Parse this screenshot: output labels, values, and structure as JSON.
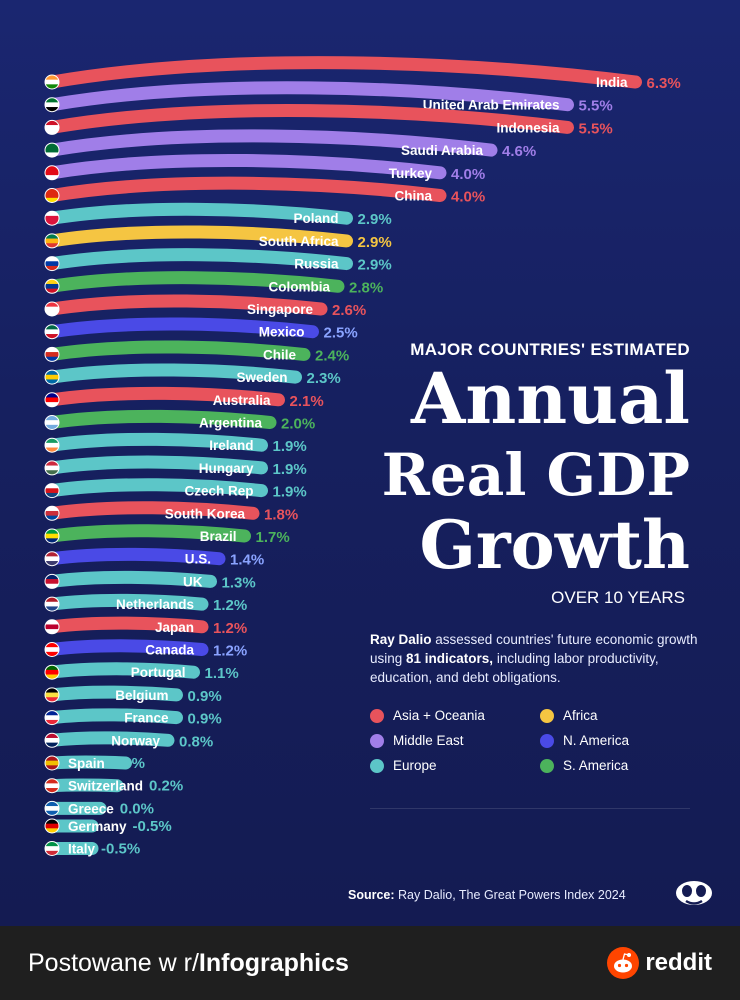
{
  "colors": {
    "Asia + Oceania": "#e8535c",
    "Middle East": "#a07ee8",
    "Africa": "#f5c542",
    "N. America": "#4a4ae6",
    "Europe": "#5cc6c8",
    "S. America": "#4cb35c"
  },
  "title": {
    "kicker": "MAJOR COUNTRIES' ESTIMATED",
    "line1": "Annual",
    "line2": "Real GDP",
    "line3": "Growth",
    "subtitle": "OVER 10 YEARS"
  },
  "description": {
    "lead": "Ray Dalio",
    "part1": " assessed countries' future economic growth using ",
    "bold": "81 indicators,",
    "part2": " including labor productivity, education, and debt obligations."
  },
  "legend": [
    {
      "label": "Asia + Oceania",
      "color": "#e8535c"
    },
    {
      "label": "Africa",
      "color": "#f5c542"
    },
    {
      "label": "Middle East",
      "color": "#a07ee8"
    },
    {
      "label": "N. America",
      "color": "#4a4ae6"
    },
    {
      "label": "Europe",
      "color": "#5cc6c8"
    },
    {
      "label": "S. America",
      "color": "#4cb35c"
    }
  ],
  "source": {
    "label": "Source:",
    "text": " Ray Dalio, The Great Powers Index 2024"
  },
  "footer": {
    "prefix": "Postowane w r/",
    "subreddit": "Infographics",
    "brand": "reddit"
  },
  "chart_data": {
    "type": "bar",
    "categories": [
      "India",
      "United Arab Emirates",
      "Indonesia",
      "Saudi Arabia",
      "Turkey",
      "China",
      "Poland",
      "South Africa",
      "Russia",
      "Colombia",
      "Singapore",
      "Mexico",
      "Chile",
      "Sweden",
      "Australia",
      "Argentina",
      "Ireland",
      "Hungary",
      "Czech Rep",
      "South Korea",
      "Brazil",
      "U.S.",
      "UK",
      "Netherlands",
      "Japan",
      "Canada",
      "Portugal",
      "Belgium",
      "France",
      "Norway",
      "Spain",
      "Switzerland",
      "Greece",
      "Germany",
      "Italy"
    ],
    "values": [
      6.3,
      5.5,
      5.5,
      4.6,
      4.0,
      4.0,
      2.9,
      2.9,
      2.9,
      2.8,
      2.6,
      2.5,
      2.4,
      2.3,
      2.1,
      2.0,
      1.9,
      1.9,
      1.9,
      1.8,
      1.7,
      1.4,
      1.3,
      1.2,
      1.2,
      1.2,
      1.1,
      0.9,
      0.9,
      0.8,
      0.3,
      0.2,
      0.0,
      -0.5,
      -0.5
    ],
    "value_labels": [
      "6.3%",
      "5.5%",
      "5.5%",
      "4.6%",
      "4.0%",
      "4.0%",
      "2.9%",
      "2.9%",
      "2.9%",
      "2.8%",
      "2.6%",
      "2.5%",
      "2.4%",
      "2.3%",
      "2.1%",
      "2.0%",
      "1.9%",
      "1.9%",
      "1.9%",
      "1.8%",
      "1.7%",
      "1.4%",
      "1.3%",
      "1.2%",
      "1.2%",
      "1.2%",
      "1.1%",
      "0.9%",
      "0.9%",
      "0.8%",
      "0.3%",
      "0.2%",
      "0.0%",
      "-0.5%",
      "-0.5%"
    ],
    "regions": [
      "Asia + Oceania",
      "Middle East",
      "Asia + Oceania",
      "Middle East",
      "Middle East",
      "Asia + Oceania",
      "Europe",
      "Africa",
      "Europe",
      "S. America",
      "Asia + Oceania",
      "N. America",
      "S. America",
      "Europe",
      "Asia + Oceania",
      "S. America",
      "Europe",
      "Europe",
      "Europe",
      "Asia + Oceania",
      "S. America",
      "N. America",
      "Europe",
      "Europe",
      "Asia + Oceania",
      "N. America",
      "Europe",
      "Europe",
      "Europe",
      "Europe",
      "Europe",
      "Europe",
      "Europe",
      "Europe",
      "Europe"
    ],
    "flag_colors": [
      [
        "#ff9933",
        "#ffffff",
        "#138808"
      ],
      [
        "#00732f",
        "#ffffff",
        "#000000"
      ],
      [
        "#ce1126",
        "#ffffff",
        "#ffffff"
      ],
      [
        "#006c35",
        "#006c35",
        "#ffffff"
      ],
      [
        "#e30a17",
        "#e30a17",
        "#ffffff"
      ],
      [
        "#de2910",
        "#de2910",
        "#ffde00"
      ],
      [
        "#ffffff",
        "#dc143c",
        "#dc143c"
      ],
      [
        "#007a4d",
        "#ffb612",
        "#de3831"
      ],
      [
        "#ffffff",
        "#0039a6",
        "#d52b1e"
      ],
      [
        "#fcd116",
        "#003893",
        "#ce1126"
      ],
      [
        "#ef3340",
        "#ffffff",
        "#ffffff"
      ],
      [
        "#006847",
        "#ffffff",
        "#ce1126"
      ],
      [
        "#ffffff",
        "#d52b1e",
        "#0039a6"
      ],
      [
        "#006aa7",
        "#fecc00",
        "#006aa7"
      ],
      [
        "#00008b",
        "#ff0000",
        "#ffffff"
      ],
      [
        "#74acdf",
        "#ffffff",
        "#74acdf"
      ],
      [
        "#169b62",
        "#ffffff",
        "#ff883e"
      ],
      [
        "#cd2a3e",
        "#ffffff",
        "#436f4d"
      ],
      [
        "#ffffff",
        "#d7141a",
        "#11457e"
      ],
      [
        "#ffffff",
        "#cd2e3a",
        "#0047a0"
      ],
      [
        "#009c3b",
        "#ffdf00",
        "#002776"
      ],
      [
        "#b22234",
        "#ffffff",
        "#3c3b6e"
      ],
      [
        "#012169",
        "#c8102e",
        "#ffffff"
      ],
      [
        "#ae1c28",
        "#ffffff",
        "#21468b"
      ],
      [
        "#ffffff",
        "#bc002d",
        "#ffffff"
      ],
      [
        "#ff0000",
        "#ffffff",
        "#ff0000"
      ],
      [
        "#006600",
        "#ff0000",
        "#ffcc00"
      ],
      [
        "#000000",
        "#fae042",
        "#ed2939"
      ],
      [
        "#002395",
        "#ffffff",
        "#ed2939"
      ],
      [
        "#ba0c2f",
        "#ffffff",
        "#00205b"
      ],
      [
        "#aa151b",
        "#f1bf00",
        "#aa151b"
      ],
      [
        "#d52b1e",
        "#ffffff",
        "#d52b1e"
      ],
      [
        "#0d5eaf",
        "#ffffff",
        "#0d5eaf"
      ],
      [
        "#000000",
        "#dd0000",
        "#ffce00"
      ],
      [
        "#009246",
        "#ffffff",
        "#ce2b37"
      ]
    ],
    "xlabel": "",
    "ylabel": ""
  }
}
